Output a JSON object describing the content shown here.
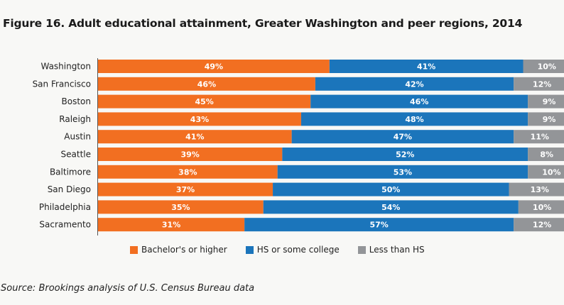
{
  "chart_data": {
    "type": "bar",
    "orientation": "horizontal",
    "stacked": true,
    "title": "Figure 16. Adult educational attainment, Greater Washington and peer regions, 2014",
    "xlabel": "",
    "ylabel": "",
    "xlim": [
      0,
      100
    ],
    "grid": false,
    "legend_position": "bottom",
    "categories": [
      "Washington",
      "San Francisco",
      "Boston",
      "Raleigh",
      "Austin",
      "Seattle",
      "Baltimore",
      "San Diego",
      "Philadelphia",
      "Sacramento"
    ],
    "series": [
      {
        "name": "Bachelor's or higher",
        "color": "#f26f21",
        "values": [
          49,
          46,
          45,
          43,
          41,
          39,
          38,
          37,
          35,
          31
        ]
      },
      {
        "name": "HS or some college",
        "color": "#1b75bb",
        "values": [
          41,
          42,
          46,
          48,
          47,
          52,
          53,
          50,
          54,
          57
        ]
      },
      {
        "name": "Less than HS",
        "color": "#939598",
        "values": [
          10,
          12,
          9,
          9,
          11,
          8,
          10,
          13,
          10,
          12
        ]
      }
    ],
    "value_suffix": "%",
    "source": "Source: Brookings analysis of U.S. Census Bureau data"
  }
}
